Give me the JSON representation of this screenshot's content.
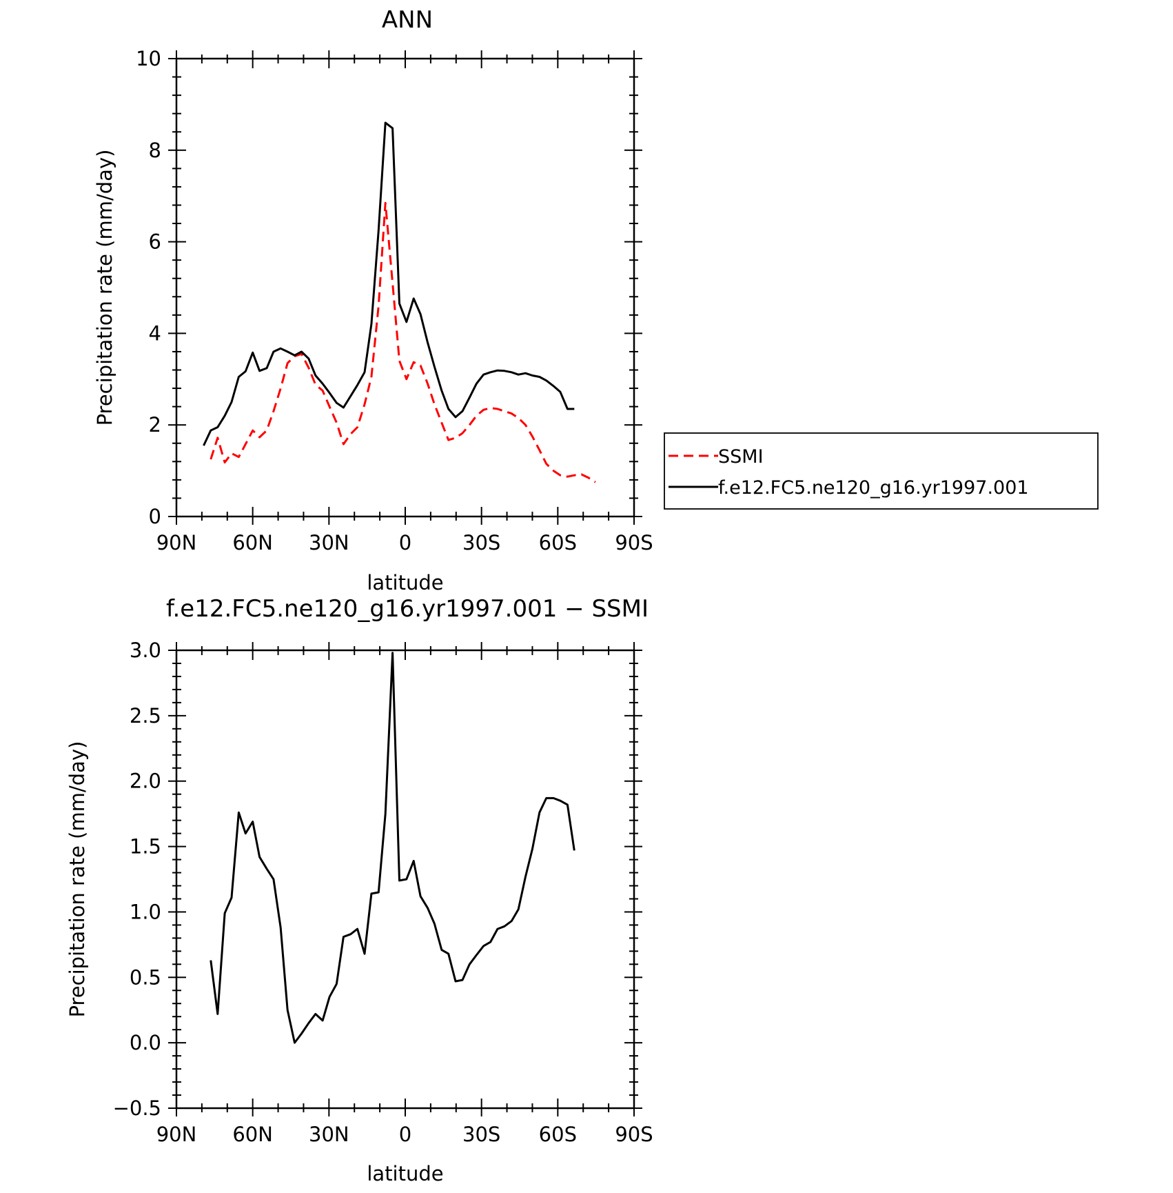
{
  "chart_data": [
    {
      "type": "line",
      "title": "ANN",
      "xlabel": "latitude",
      "ylabel": "Precipitation rate (mm/day)",
      "xlim": [
        -90,
        90
      ],
      "ylim": [
        0,
        10
      ],
      "x_ticks": [
        -90,
        -60,
        -30,
        0,
        30,
        60,
        90
      ],
      "x_tick_labels": [
        "90N",
        "60N",
        "30N",
        "0",
        "30S",
        "60S",
        "90S"
      ],
      "y_ticks": [
        0,
        2,
        4,
        6,
        8,
        10
      ],
      "y_tick_labels": [
        "0",
        "2",
        "4",
        "6",
        "8",
        "10"
      ],
      "legend_position": "right",
      "series": [
        {
          "name": "SSMI",
          "color": "#ff0000",
          "dash": "dashed",
          "x": [
            -76.5,
            -73.8,
            -71.0,
            -68.3,
            -65.5,
            -62.8,
            -60.0,
            -57.3,
            -54.5,
            -51.8,
            -49.0,
            -46.3,
            -43.5,
            -40.8,
            -38.0,
            -35.3,
            -32.5,
            -29.8,
            -27.0,
            -24.3,
            -21.5,
            -18.8,
            -16.0,
            -13.3,
            -10.5,
            -7.8,
            -5.0,
            -2.3,
            0.5,
            3.3,
            6.0,
            8.8,
            11.5,
            14.3,
            17.0,
            19.8,
            22.5,
            25.3,
            28.0,
            30.8,
            33.5,
            36.3,
            39.0,
            41.8,
            44.5,
            47.3,
            50.0,
            52.8,
            55.5,
            58.3,
            61.0,
            63.8,
            66.5,
            69.3,
            72.0,
            74.8
          ],
          "y": [
            1.25,
            1.72,
            1.18,
            1.38,
            1.3,
            1.58,
            1.88,
            1.73,
            1.88,
            2.3,
            2.8,
            3.35,
            3.5,
            3.55,
            3.25,
            2.88,
            2.75,
            2.4,
            2.05,
            1.58,
            1.8,
            1.95,
            2.45,
            3.05,
            4.6,
            6.85,
            5.1,
            3.4,
            3.0,
            3.37,
            3.3,
            2.9,
            2.45,
            2.05,
            1.67,
            1.72,
            1.82,
            2.0,
            2.2,
            2.33,
            2.37,
            2.35,
            2.3,
            2.25,
            2.15,
            2.0,
            1.75,
            1.45,
            1.15,
            1.0,
            0.9,
            0.87,
            0.9,
            0.92,
            0.85,
            0.75
          ]
        },
        {
          "name": "f.e12.FC5.ne120_g16.yr1997.001",
          "color": "#000000",
          "dash": "solid",
          "x": [
            -79.3,
            -76.5,
            -73.8,
            -71.0,
            -68.3,
            -65.5,
            -62.8,
            -60.0,
            -57.3,
            -54.5,
            -51.8,
            -49.0,
            -46.3,
            -43.5,
            -40.8,
            -38.0,
            -35.3,
            -32.5,
            -29.8,
            -27.0,
            -24.3,
            -21.5,
            -18.8,
            -16.0,
            -13.3,
            -10.5,
            -7.8,
            -5.0,
            -2.3,
            0.5,
            3.3,
            6.0,
            8.8,
            11.5,
            14.3,
            17.0,
            19.8,
            22.5,
            25.3,
            28.0,
            30.8,
            33.5,
            36.3,
            39.0,
            41.8,
            44.5,
            47.3,
            50.0,
            52.8,
            55.5,
            58.3,
            61.0,
            63.8,
            66.5
          ],
          "y": [
            1.55,
            1.88,
            1.95,
            2.2,
            2.5,
            3.05,
            3.17,
            3.58,
            3.18,
            3.24,
            3.6,
            3.67,
            3.6,
            3.52,
            3.6,
            3.45,
            3.08,
            2.9,
            2.7,
            2.48,
            2.38,
            2.63,
            2.87,
            3.15,
            4.2,
            6.25,
            8.6,
            8.48,
            4.65,
            4.25,
            4.76,
            4.42,
            3.8,
            3.27,
            2.75,
            2.35,
            2.17,
            2.3,
            2.6,
            2.9,
            3.1,
            3.15,
            3.19,
            3.18,
            3.15,
            3.1,
            3.13,
            3.08,
            3.05,
            2.97,
            2.85,
            2.72,
            2.35,
            2.35
          ]
        }
      ]
    },
    {
      "type": "line",
      "title": "f.e12.FC5.ne120_g16.yr1997.001 − SSMI",
      "xlabel": "latitude",
      "ylabel": "Precipitation rate (mm/day)",
      "xlim": [
        -90,
        90
      ],
      "ylim": [
        -0.5,
        3.0
      ],
      "x_ticks": [
        -90,
        -60,
        -30,
        0,
        30,
        60,
        90
      ],
      "x_tick_labels": [
        "90N",
        "60N",
        "30N",
        "0",
        "30S",
        "60S",
        "90S"
      ],
      "y_ticks": [
        -0.5,
        0.0,
        0.5,
        1.0,
        1.5,
        2.0,
        2.5,
        3.0
      ],
      "y_tick_labels": [
        "−0.5",
        "0.0",
        "0.5",
        "1.0",
        "1.5",
        "2.0",
        "2.5",
        "3.0"
      ],
      "series": [
        {
          "color": "#000000",
          "dash": "solid",
          "x": [
            -76.5,
            -73.8,
            -71.0,
            -68.3,
            -65.5,
            -62.8,
            -60.0,
            -57.3,
            -54.5,
            -51.8,
            -49.0,
            -46.3,
            -43.5,
            -40.8,
            -38.0,
            -35.3,
            -32.5,
            -29.8,
            -27.0,
            -24.3,
            -21.5,
            -18.8,
            -16.0,
            -13.3,
            -10.5,
            -7.8,
            -5.0,
            -2.3,
            0.5,
            3.3,
            6.0,
            8.8,
            11.5,
            14.3,
            17.0,
            19.8,
            22.5,
            25.3,
            28.0,
            30.8,
            33.5,
            36.3,
            39.0,
            41.8,
            44.5,
            47.3,
            50.0,
            52.8,
            55.5,
            58.3,
            61.0,
            63.8,
            66.5
          ],
          "y": [
            0.63,
            0.22,
            0.99,
            1.11,
            1.76,
            1.6,
            1.69,
            1.42,
            1.33,
            1.25,
            0.88,
            0.25,
            0.0,
            0.07,
            0.15,
            0.22,
            0.17,
            0.35,
            0.45,
            0.81,
            0.83,
            0.87,
            0.68,
            1.14,
            1.15,
            1.75,
            2.98,
            1.24,
            1.25,
            1.39,
            1.12,
            1.03,
            0.91,
            0.71,
            0.68,
            0.47,
            0.48,
            0.6,
            0.67,
            0.74,
            0.77,
            0.87,
            0.89,
            0.93,
            1.02,
            1.27,
            1.48,
            1.76,
            1.87,
            1.87,
            1.85,
            1.82,
            1.47
          ]
        }
      ]
    }
  ]
}
